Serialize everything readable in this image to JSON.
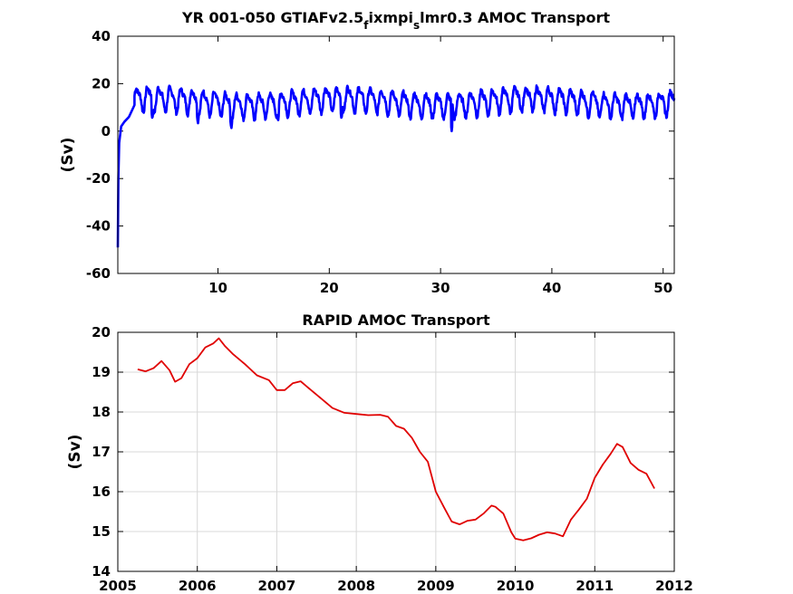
{
  "chart_data": [
    {
      "type": "line",
      "title": "YR 001-050 GTIAFv2.5",
      "title_parts": [
        {
          "text": "YR 001-050 GTIAFv2.5",
          "sub": false
        },
        {
          "text": "f",
          "sub": true
        },
        {
          "text": "ixmpi",
          "sub": false
        },
        {
          "text": "s",
          "sub": true
        },
        {
          "text": "lmr0.3 AMOC Transport",
          "sub": false
        }
      ],
      "xlabel": "",
      "ylabel": "(Sv)",
      "xlim": [
        1,
        51
      ],
      "ylim": [
        -60,
        40
      ],
      "x_ticks": [
        10,
        20,
        30,
        40,
        50
      ],
      "y_ticks": [
        -60,
        -40,
        -20,
        0,
        20,
        40
      ],
      "y_tick_labels": [
        "-60",
        "-40",
        "-20",
        "0",
        "20",
        "40"
      ],
      "x_tick_labels": [
        "10",
        "20",
        "30",
        "40",
        "50"
      ],
      "color": "#0000ff",
      "grid": false,
      "series_model": {
        "start": [
          [
            1.0,
            -49
          ],
          [
            1.05,
            -20
          ],
          [
            1.12,
            -5
          ],
          [
            1.3,
            2
          ],
          [
            1.6,
            4
          ],
          [
            2.0,
            6
          ],
          [
            2.5,
            11
          ]
        ],
        "mean": 12.5,
        "seasonal_amplitude": 4.5,
        "period_years": 1,
        "min_dips": [
          [
            1.7,
            2
          ],
          [
            4.1,
            5
          ],
          [
            8.2,
            3
          ],
          [
            11.2,
            1
          ],
          [
            15.4,
            4
          ],
          [
            21.1,
            5
          ],
          [
            31.0,
            0
          ],
          [
            41.2,
            11
          ],
          [
            50.4,
            8
          ]
        ]
      }
    },
    {
      "type": "line",
      "title": "RAPID AMOC Transport",
      "xlabel": "",
      "ylabel": "(Sv)",
      "xlim": [
        2005,
        2012
      ],
      "ylim": [
        14,
        20
      ],
      "x_ticks": [
        2005,
        2006,
        2007,
        2008,
        2009,
        2010,
        2011,
        2012
      ],
      "x_tick_labels": [
        "2005",
        "2006",
        "2007",
        "2008",
        "2009",
        "2010",
        "2011",
        "2012"
      ],
      "y_ticks": [
        14,
        15,
        16,
        17,
        18,
        19,
        20
      ],
      "y_tick_labels": [
        "14",
        "15",
        "16",
        "17",
        "18",
        "19",
        "20"
      ],
      "color": "#e00000",
      "grid": true,
      "x": [
        2005.25,
        2005.35,
        2005.45,
        2005.55,
        2005.65,
        2005.72,
        2005.8,
        2005.9,
        2006.0,
        2006.1,
        2006.2,
        2006.27,
        2006.35,
        2006.45,
        2006.6,
        2006.75,
        2006.9,
        2007.0,
        2007.1,
        2007.2,
        2007.3,
        2007.4,
        2007.55,
        2007.7,
        2007.85,
        2008.0,
        2008.15,
        2008.3,
        2008.4,
        2008.5,
        2008.6,
        2008.7,
        2008.8,
        2008.9,
        2009.0,
        2009.1,
        2009.2,
        2009.3,
        2009.4,
        2009.5,
        2009.6,
        2009.7,
        2009.75,
        2009.85,
        2009.95,
        2010.0,
        2010.1,
        2010.2,
        2010.3,
        2010.4,
        2010.5,
        2010.6,
        2010.7,
        2010.8,
        2010.9,
        2011.0,
        2011.1,
        2011.2,
        2011.28,
        2011.35,
        2011.45,
        2011.55,
        2011.65,
        2011.75
      ],
      "y": [
        19.07,
        19.02,
        19.1,
        19.28,
        19.05,
        18.76,
        18.85,
        19.2,
        19.35,
        19.62,
        19.72,
        19.85,
        19.65,
        19.45,
        19.2,
        18.92,
        18.8,
        18.55,
        18.55,
        18.72,
        18.77,
        18.6,
        18.35,
        18.1,
        17.98,
        17.95,
        17.92,
        17.93,
        17.88,
        17.65,
        17.58,
        17.35,
        17.0,
        16.75,
        16.0,
        15.62,
        15.25,
        15.18,
        15.27,
        15.3,
        15.45,
        15.65,
        15.62,
        15.45,
        14.98,
        14.82,
        14.78,
        14.83,
        14.92,
        14.98,
        14.95,
        14.88,
        15.3,
        15.55,
        15.82,
        16.35,
        16.68,
        16.95,
        17.2,
        17.12,
        16.72,
        16.55,
        16.45,
        16.08
      ]
    }
  ]
}
